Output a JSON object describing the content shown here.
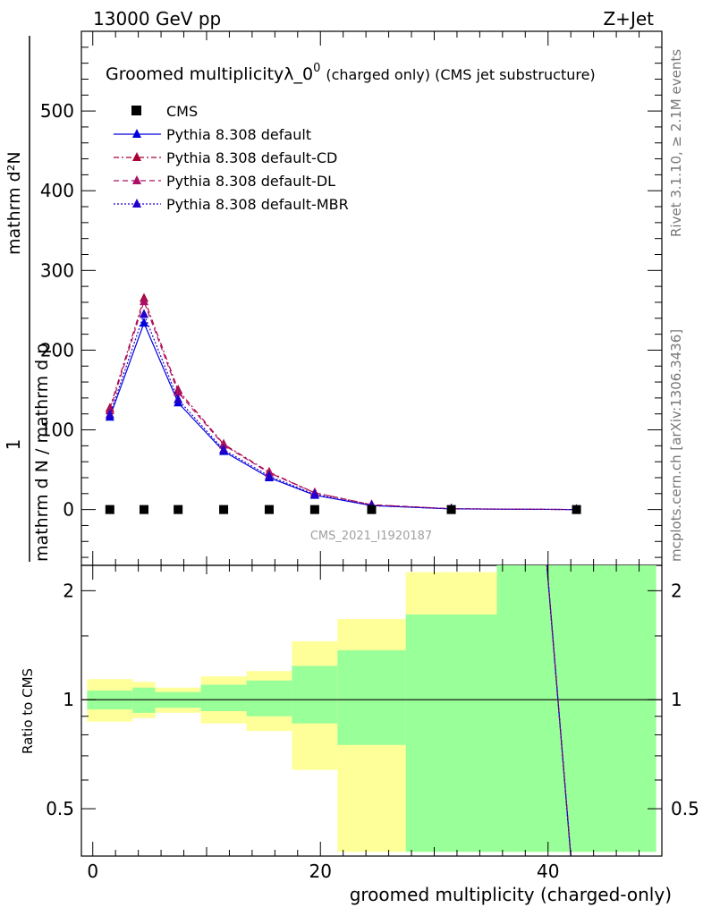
{
  "header": {
    "energy_label": "13000 GeV pp",
    "process_label": "Z+Jet"
  },
  "side_labels": {
    "rivet": "Rivet 3.1.10, ≥ 2.1M events",
    "mcplots": "mcplots.cern.ch [arXiv:1306.3436]"
  },
  "chart_data": {
    "type": "line",
    "title_main": "Groomed multiplicityλ_0",
    "title_sup": "0",
    "title_sub": "(charged only) (CMS jet substructure)",
    "watermark": "CMS_2021_I1920187",
    "ylabel": "1/mathrm d N / mathrm d p_T mathrm d N / mathrm d p_T mathrm d lambda",
    "ylabel_numer": "mathrm d²N",
    "ylabel_denom_a": "mathrm d N / mathrm d p",
    "ylabel_denom_b": "mathrm d p",
    "ylabel_denom_c": "mathrm d p",
    "ylabel_one": "1",
    "ratio_ylabel": "Ratio to CMS",
    "xlabel": "groomed multiplicity (charged-only)",
    "xlim": [
      -1,
      50
    ],
    "ylim": [
      -70,
      600
    ],
    "ratio_ylim": [
      0.37,
      2.35
    ],
    "x_ticks": [
      "0",
      "20",
      "40"
    ],
    "y_ticks": [
      "0",
      "100",
      "200",
      "300",
      "400",
      "500"
    ],
    "ratio_ticks": [
      "0.5",
      "1",
      "2"
    ],
    "x_tick_values": [
      0,
      20,
      40
    ],
    "y_tick_values": [
      0,
      100,
      200,
      300,
      400,
      500
    ],
    "ratio_tick_values": [
      0.5,
      1,
      2
    ],
    "bin_edges": [
      -0.5,
      3.5,
      5.5,
      9.5,
      13.5,
      17.5,
      21.5,
      27.5,
      35.5,
      49.5
    ],
    "x": [
      1.5,
      4.5,
      7.5,
      11.5,
      15.5,
      19.5,
      24.5,
      31.5,
      42.5
    ],
    "data": {
      "name": "CMS",
      "values": [
        0,
        0,
        0,
        0,
        0,
        0,
        0,
        0,
        0
      ],
      "band_inner": [
        [
          0.94,
          1.06
        ],
        [
          0.92,
          1.08
        ],
        [
          0.95,
          1.05
        ],
        [
          0.93,
          1.1
        ],
        [
          0.9,
          1.13
        ],
        [
          0.86,
          1.24
        ],
        [
          0.75,
          1.37
        ],
        [
          0.38,
          1.72
        ],
        [
          0.38,
          2.4
        ]
      ],
      "band_outer": [
        [
          0.87,
          1.14
        ],
        [
          0.89,
          1.12
        ],
        [
          0.92,
          1.08
        ],
        [
          0.86,
          1.16
        ],
        [
          0.82,
          1.2
        ],
        [
          0.64,
          1.45
        ],
        [
          0.38,
          1.67
        ],
        [
          0.38,
          2.25
        ],
        [
          0.38,
          2.4
        ]
      ]
    },
    "series": [
      {
        "name": "Pythia 8.308 default",
        "color": "#0000dd",
        "dash": "",
        "values": [
          116,
          234,
          134,
          73,
          40,
          18,
          5,
          0.8,
          0
        ]
      },
      {
        "name": "Pythia 8.308 default-CD",
        "color": "#aa0033",
        "dash": "6,3,2,3",
        "values": [
          127,
          265,
          150,
          82,
          47,
          21,
          6,
          1.0,
          0
        ]
      },
      {
        "name": "Pythia 8.308 default-DL",
        "color": "#aa1166",
        "dash": "6,4",
        "values": [
          124,
          261,
          147,
          81,
          46,
          21,
          6,
          1.0,
          0
        ]
      },
      {
        "name": "Pythia 8.308 default-MBR",
        "color": "#2200cc",
        "dash": "2,2",
        "values": [
          119,
          245,
          138,
          75,
          42,
          19,
          5,
          0.9,
          0
        ]
      }
    ],
    "colors": {
      "band_inner": "#99ff99",
      "band_outer": "#ffff99"
    }
  }
}
